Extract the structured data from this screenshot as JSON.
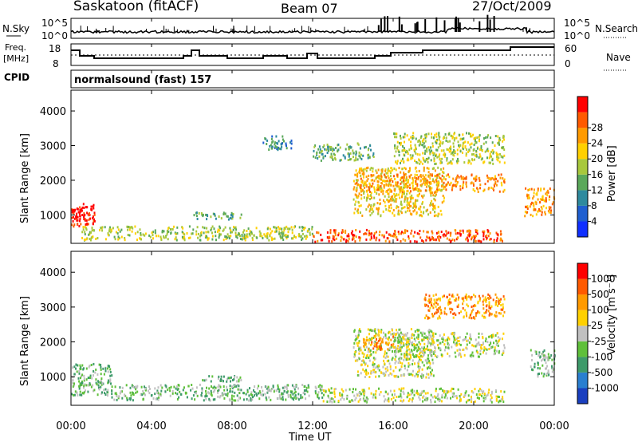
{
  "header": {
    "station": "Saskatoon (fitACF)",
    "beam": "Beam 07",
    "date": "27/Oct/2009"
  },
  "noise_panel": {
    "left_label": "N.Sky",
    "right_label": "N.Search",
    "left_ticks": [
      "10^5",
      "10^0"
    ],
    "right_ticks": [
      "10^5",
      "10^0"
    ]
  },
  "freq_panel": {
    "left_label_1": "Freq.",
    "left_label_2": "[MHz]",
    "right_label": "Nave",
    "left_ticks": [
      "18",
      "8"
    ],
    "right_ticks": [
      "60",
      "0"
    ]
  },
  "cpid": {
    "label": "CPID",
    "text": "normalsound (fast) 157"
  },
  "time_axis": {
    "ticks": [
      "00:00",
      "04:00",
      "08:00",
      "12:00",
      "16:00",
      "20:00",
      "00:00"
    ],
    "label": "Time UT"
  },
  "range_axis": {
    "label": "Slant Range [km]",
    "ticks": [
      "1000",
      "2000",
      "3000",
      "4000"
    ]
  },
  "power_scale": {
    "label": "Power [dB]",
    "ticks": [
      "4",
      "8",
      "12",
      "16",
      "20",
      "24",
      "28"
    ],
    "colors": [
      "#1030ff",
      "#1f5fd0",
      "#2e8a9e",
      "#5aa85a",
      "#a8c83c",
      "#ffd000",
      "#ff9a00",
      "#ff5a00",
      "#ff0000"
    ]
  },
  "velocity_scale": {
    "label": "Velocity [m s⁻¹]",
    "ticks": [
      "1000",
      "500",
      "100",
      "25",
      "-25",
      "-100",
      "-500",
      "-1000"
    ],
    "colors": [
      "#1a3fbf",
      "#2a7fd0",
      "#3e9a6a",
      "#5fc03a",
      "#c0c0c0",
      "#ffd000",
      "#ff9a00",
      "#ff5a00",
      "#ff0000"
    ]
  },
  "chart_data": {
    "type": "heatmap",
    "x_range_hours": [
      0,
      24
    ],
    "y_range_km": [
      180,
      4600
    ],
    "power_regions": [
      {
        "t0": 0.0,
        "t1": 1.2,
        "r0": 700,
        "r1": 1350,
        "level": 8
      },
      {
        "t0": 0.0,
        "t1": 1.0,
        "r0": 900,
        "r1": 1200,
        "level": 9
      },
      {
        "t0": 0.5,
        "t1": 12.0,
        "r0": 300,
        "r1": 700,
        "level": 4
      },
      {
        "t0": 12.0,
        "t1": 21.5,
        "r0": 250,
        "r1": 600,
        "level": 7
      },
      {
        "t0": 14.0,
        "t1": 18.5,
        "r0": 1000,
        "r1": 2400,
        "level": 5
      },
      {
        "t0": 14.0,
        "t1": 21.5,
        "r0": 1700,
        "r1": 2200,
        "level": 6
      },
      {
        "t0": 16.0,
        "t1": 21.5,
        "r0": 2500,
        "r1": 3400,
        "level": 4
      },
      {
        "t0": 12.0,
        "t1": 15.0,
        "r0": 2600,
        "r1": 3100,
        "level": 3
      },
      {
        "t0": 22.5,
        "t1": 24.0,
        "r0": 1000,
        "r1": 1800,
        "level": 6
      },
      {
        "t0": 6.0,
        "t1": 8.5,
        "r0": 900,
        "r1": 1100,
        "level": 3
      },
      {
        "t0": 9.5,
        "t1": 11.0,
        "r0": 2900,
        "r1": 3300,
        "level": 2
      }
    ],
    "velocity_regions": [
      {
        "t0": 0.0,
        "t1": 2.0,
        "r0": 500,
        "r1": 1400,
        "level": 3
      },
      {
        "t0": 2.0,
        "t1": 12.5,
        "r0": 350,
        "r1": 800,
        "level": 3
      },
      {
        "t0": 12.5,
        "t1": 21.5,
        "r0": 300,
        "r1": 700,
        "level": 4
      },
      {
        "t0": 14.0,
        "t1": 18.0,
        "r0": 1000,
        "r1": 2400,
        "level": 4
      },
      {
        "t0": 16.0,
        "t1": 21.5,
        "r0": 1600,
        "r1": 2300,
        "level": 4
      },
      {
        "t0": 17.5,
        "t1": 21.5,
        "r0": 2700,
        "r1": 3400,
        "level": 6
      },
      {
        "t0": 14.5,
        "t1": 16.0,
        "r0": 1800,
        "r1": 2200,
        "level": 6
      },
      {
        "t0": 22.8,
        "t1": 24.0,
        "r0": 1000,
        "r1": 1800,
        "level": 3
      },
      {
        "t0": 6.5,
        "t1": 8.5,
        "r0": 850,
        "r1": 1050,
        "level": 3
      }
    ]
  }
}
